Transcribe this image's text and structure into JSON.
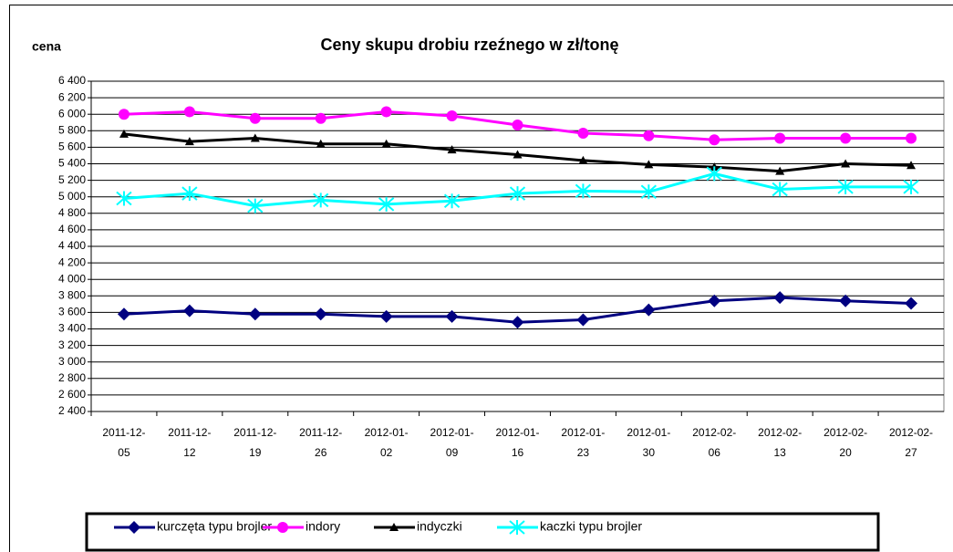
{
  "chart_data": {
    "type": "line",
    "title": "Ceny skupu drobiu rzeźnego w zł/tonę",
    "y_label": "cena",
    "categories": [
      "2011-12-05",
      "2011-12-12",
      "2011-12-19",
      "2011-12-26",
      "2012-01-02",
      "2012-01-09",
      "2012-01-16",
      "2012-01-23",
      "2012-01-30",
      "2012-02-06",
      "2012-02-13",
      "2012-02-20",
      "2012-02-27"
    ],
    "series": [
      {
        "name": "kurczęta typu brojler",
        "color": "#000080",
        "marker": "diamond",
        "values": [
          3580,
          3620,
          3580,
          3580,
          3550,
          3550,
          3480,
          3510,
          3630,
          3740,
          3780,
          3740,
          3710
        ]
      },
      {
        "name": "indory",
        "color": "#ff00ff",
        "marker": "circle",
        "values": [
          6000,
          6030,
          5950,
          5950,
          6030,
          5980,
          5870,
          5770,
          5740,
          5690,
          5710,
          5710,
          5710
        ]
      },
      {
        "name": "indyczki",
        "color": "#000000",
        "marker": "triangle",
        "values": [
          5760,
          5670,
          5710,
          5640,
          5640,
          5570,
          5510,
          5440,
          5390,
          5360,
          5310,
          5400,
          5380
        ]
      },
      {
        "name": "kaczki typu brojler",
        "color": "#00ffff",
        "marker": "x",
        "values": [
          4980,
          5040,
          4890,
          4960,
          4910,
          4950,
          5040,
          5070,
          5060,
          5280,
          5090,
          5120,
          5120
        ]
      }
    ],
    "ylim": [
      2400,
      6400
    ],
    "yticks": [
      {
        "value": 2400,
        "label": "2 400"
      },
      {
        "value": 2600,
        "label": "2 600"
      },
      {
        "value": 2800,
        "label": "2 800"
      },
      {
        "value": 3000,
        "label": "3 000"
      },
      {
        "value": 3200,
        "label": "3 200"
      },
      {
        "value": 3400,
        "label": "3 400"
      },
      {
        "value": 3600,
        "label": "3 600"
      },
      {
        "value": 3800,
        "label": "3 800"
      },
      {
        "value": 4000,
        "label": "4 000"
      },
      {
        "value": 4200,
        "label": "4 200"
      },
      {
        "value": 4400,
        "label": "4 400"
      },
      {
        "value": 4600,
        "label": "4 600"
      },
      {
        "value": 4800,
        "label": "4 800"
      },
      {
        "value": 5000,
        "label": "5 000"
      },
      {
        "value": 5200,
        "label": "5 200"
      },
      {
        "value": 5400,
        "label": "5 400"
      },
      {
        "value": 5600,
        "label": "5 600"
      },
      {
        "value": 5800,
        "label": "5 800"
      },
      {
        "value": 6000,
        "label": "6 000"
      },
      {
        "value": 6200,
        "label": "6 200"
      },
      {
        "value": 6400,
        "label": "6 400"
      }
    ],
    "grid": true
  }
}
